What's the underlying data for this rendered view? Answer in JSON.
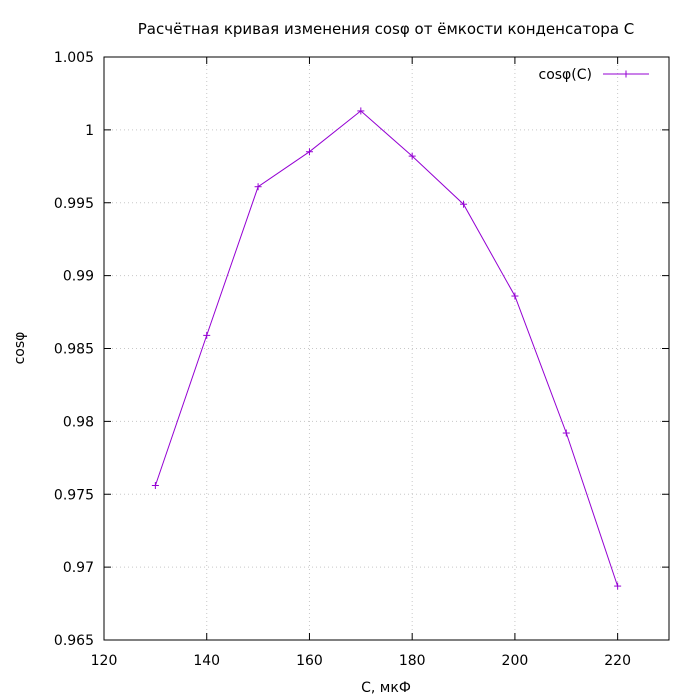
{
  "chart_data": {
    "type": "line",
    "title": "Расчётная кривая изменения cosφ от ёмкости конденсатора C",
    "xlabel": "C, мкФ",
    "ylabel": "cosφ",
    "xlim": [
      120,
      230
    ],
    "ylim": [
      0.965,
      1.005
    ],
    "xticks": [
      120,
      140,
      160,
      180,
      200,
      220
    ],
    "xtick_labels": [
      "120",
      "140",
      "160",
      "180",
      "200",
      "220"
    ],
    "yticks": [
      0.965,
      0.97,
      0.975,
      0.98,
      0.985,
      0.99,
      0.995,
      1.0,
      1.005
    ],
    "ytick_labels": [
      "0.965",
      "0.97",
      "0.975",
      "0.98",
      "0.985",
      "0.99",
      "0.995",
      "1",
      "1.005"
    ],
    "grid": true,
    "legend_position": "top-right",
    "series": [
      {
        "name": "cosφ(C)",
        "color": "#9400d3",
        "marker": "plus",
        "x": [
          130,
          140,
          150,
          160,
          170,
          180,
          190,
          200,
          210,
          220
        ],
        "y": [
          0.9756,
          0.9859,
          0.9961,
          0.9985,
          1.0013,
          0.9982,
          0.9949,
          0.9886,
          0.9792,
          0.9687
        ]
      }
    ]
  }
}
